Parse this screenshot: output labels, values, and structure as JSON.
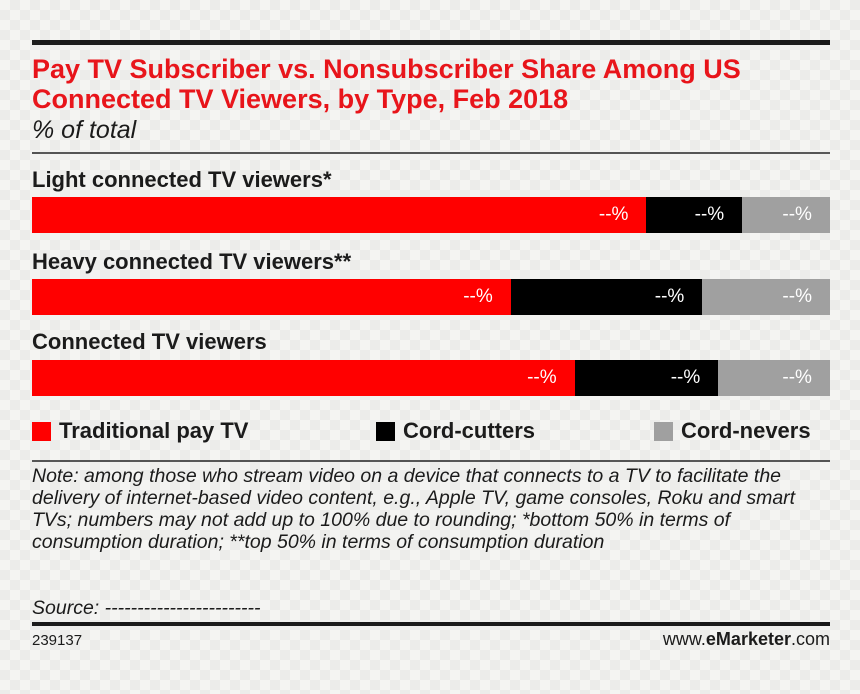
{
  "header": {
    "title": "Pay TV Subscriber vs. Nonsubscriber Share Among US Connected TV Viewers, by Type, Feb 2018",
    "subtitle": "% of total"
  },
  "colors": {
    "traditional": "#ff0000",
    "cord_cutters": "#000000",
    "cord_nevers": "#a0a0a0"
  },
  "chart_data": {
    "type": "bar",
    "orientation": "horizontal",
    "stacked": true,
    "title": "Pay TV Subscriber vs. Nonsubscriber Share Among US Connected TV Viewers, by Type, Feb 2018",
    "subtitle": "% of total",
    "categories": [
      "Light connected TV viewers*",
      "Heavy connected TV viewers**",
      "Connected TV viewers"
    ],
    "series": [
      {
        "name": "Traditional pay TV",
        "values": [
          77,
          60,
          68
        ],
        "labels": [
          "--%",
          "--%",
          "--%"
        ]
      },
      {
        "name": "Cord-cutters",
        "values": [
          12,
          24,
          18
        ],
        "labels": [
          "--%",
          "--%",
          "--%"
        ]
      },
      {
        "name": "Cord-nevers",
        "values": [
          11,
          16,
          14
        ],
        "labels": [
          "--%",
          "--%",
          "--%"
        ]
      }
    ],
    "xlim": [
      0,
      100
    ],
    "legend_position": "bottom",
    "grid": false
  },
  "legend": [
    {
      "label": "Traditional pay TV"
    },
    {
      "label": "Cord-cutters"
    },
    {
      "label": "Cord-nevers"
    }
  ],
  "footer": {
    "note": "Note: among those who stream video on a device that connects to a TV to facilitate the delivery of internet-based video content, e.g., Apple TV, game consoles, Roku and smart TVs; numbers may not add up to 100% due to rounding; *bottom 50% in terms of consumption duration; **top 50% in terms of consumption duration",
    "source": "Source: ------------------------",
    "chart_id": "239137",
    "brand_prefix": "www.",
    "brand_bold": "eMarketer",
    "brand_suffix": ".com"
  }
}
